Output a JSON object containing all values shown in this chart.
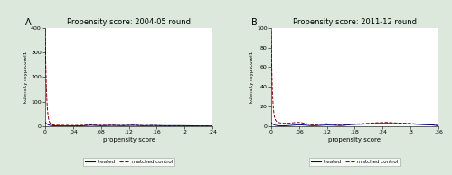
{
  "panel_A": {
    "label": "A",
    "title": "Propensity score: 2004-05 round",
    "xlabel": "propensity score",
    "ylabel": "kdensity mypscoreI1",
    "xlim": [
      0,
      0.24
    ],
    "ylim": [
      0,
      400
    ],
    "xticks": [
      0,
      0.04,
      0.08,
      0.12,
      0.16,
      0.2,
      0.24
    ],
    "xticklabels": [
      "0",
      ".04",
      ".08",
      ".12",
      ".16",
      ".2",
      ".24"
    ],
    "yticks": [
      0,
      100,
      200,
      300,
      400
    ]
  },
  "panel_B": {
    "label": "B",
    "title": "Propensity score: 2011-12 round",
    "xlabel": "propensity score",
    "ylabel": "kdensity mypscoreI1",
    "xlim": [
      0,
      0.36
    ],
    "ylim": [
      0,
      100
    ],
    "xticks": [
      0,
      0.06,
      0.12,
      0.18,
      0.24,
      0.3,
      0.36
    ],
    "xticklabels": [
      "0",
      ".06",
      ".12",
      ".18",
      ".24",
      ".3",
      ".36"
    ],
    "yticks": [
      0,
      20,
      40,
      60,
      80,
      100
    ]
  },
  "treated_color": "#00008B",
  "control_color": "#8B0000",
  "fig_bg_color": "#dce8dc",
  "plot_bg_color": "#ffffff",
  "legend_treated": "treated",
  "legend_control": "matched control"
}
